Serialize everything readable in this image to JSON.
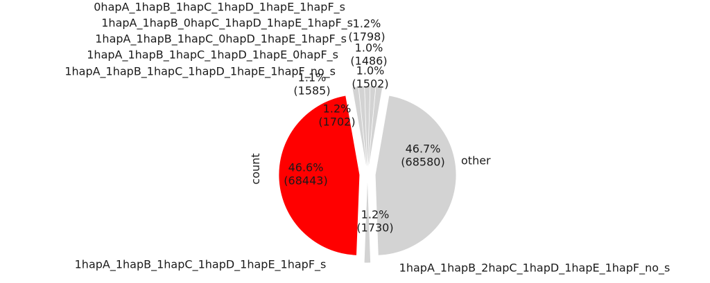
{
  "chart_data": {
    "type": "pie",
    "ylabel": "count",
    "slices": [
      {
        "label": "1hapA_1hapB_1hapC_1hapD_1hapE_1hapF_s",
        "value": 68443,
        "pct_label": "46.6%",
        "count_label": "(68443)",
        "color": "#ff0000"
      },
      {
        "label": "1hapA_1hapB_2hapC_1hapD_1hapE_1hapF_no_s",
        "value": 1730,
        "pct_label": "1.2%",
        "count_label": "(1730)",
        "color": "#d3d3d3"
      },
      {
        "label": "other",
        "value": 68580,
        "pct_label": "46.7%",
        "count_label": "(68580)",
        "color": "#d3d3d3"
      },
      {
        "label": "0hapA_1hapB_1hapC_1hapD_1hapE_1hapF_s",
        "value": 1798,
        "pct_label": "1.2%",
        "count_label": "(1798)",
        "color": "#d3d3d3"
      },
      {
        "label": "1hapA_1hapB_0hapC_1hapD_1hapE_1hapF_s",
        "value": 1486,
        "pct_label": "1.0%",
        "count_label": "(1486)",
        "color": "#d3d3d3"
      },
      {
        "label": "1hapA_1hapB_1hapC_0hapD_1hapE_1hapF_s",
        "value": 1502,
        "pct_label": "1.0%",
        "count_label": "(1502)",
        "color": "#d3d3d3"
      },
      {
        "label": "1hapA_1hapB_1hapC_1hapD_1hapE_0hapF_s",
        "value": 1585,
        "pct_label": "1.1%",
        "count_label": "(1585)",
        "color": "#d3d3d3"
      },
      {
        "label": "1hapA_1hapB_1hapC_1hapD_1hapE_1hapF_no_s",
        "value": 1702,
        "pct_label": "1.2%",
        "count_label": "(1702)",
        "color": "#d3d3d3"
      }
    ]
  }
}
